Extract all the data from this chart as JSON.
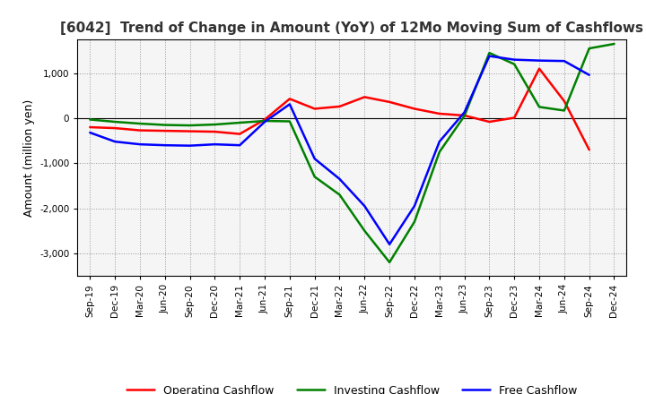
{
  "title": "[6042]  Trend of Change in Amount (YoY) of 12Mo Moving Sum of Cashflows",
  "ylabel": "Amount (million yen)",
  "background_color": "#ffffff",
  "plot_bg_color": "#f5f5f5",
  "grid_color": "#999999",
  "x_labels": [
    "Sep-19",
    "Dec-19",
    "Mar-20",
    "Jun-20",
    "Sep-20",
    "Dec-20",
    "Mar-21",
    "Jun-21",
    "Sep-21",
    "Dec-21",
    "Mar-22",
    "Jun-22",
    "Sep-22",
    "Dec-22",
    "Mar-23",
    "Jun-23",
    "Sep-23",
    "Dec-23",
    "Mar-24",
    "Jun-24",
    "Sep-24",
    "Dec-24"
  ],
  "operating": [
    -200,
    -220,
    -270,
    -280,
    -290,
    -300,
    -350,
    -30,
    430,
    210,
    260,
    470,
    360,
    210,
    100,
    60,
    -80,
    10,
    1100,
    380,
    -700,
    null
  ],
  "investing": [
    -30,
    -80,
    -120,
    -150,
    -160,
    -140,
    -100,
    -60,
    -70,
    -1300,
    -1700,
    -2500,
    -3200,
    -2300,
    -750,
    50,
    1450,
    1200,
    250,
    170,
    1550,
    1650
  ],
  "free": [
    -320,
    -520,
    -580,
    -600,
    -610,
    -580,
    -600,
    -80,
    310,
    -900,
    -1350,
    -1950,
    -2800,
    -1950,
    -520,
    130,
    1380,
    1300,
    1280,
    1270,
    960,
    null
  ],
  "operating_color": "#ff0000",
  "investing_color": "#008000",
  "free_color": "#0000ff",
  "ylim": [
    -3500,
    1750
  ],
  "yticks": [
    -3000,
    -2000,
    -1000,
    0,
    1000
  ],
  "line_width": 1.8,
  "title_fontsize": 11,
  "tick_fontsize": 7.5,
  "ylabel_fontsize": 9,
  "legend_fontsize": 9
}
